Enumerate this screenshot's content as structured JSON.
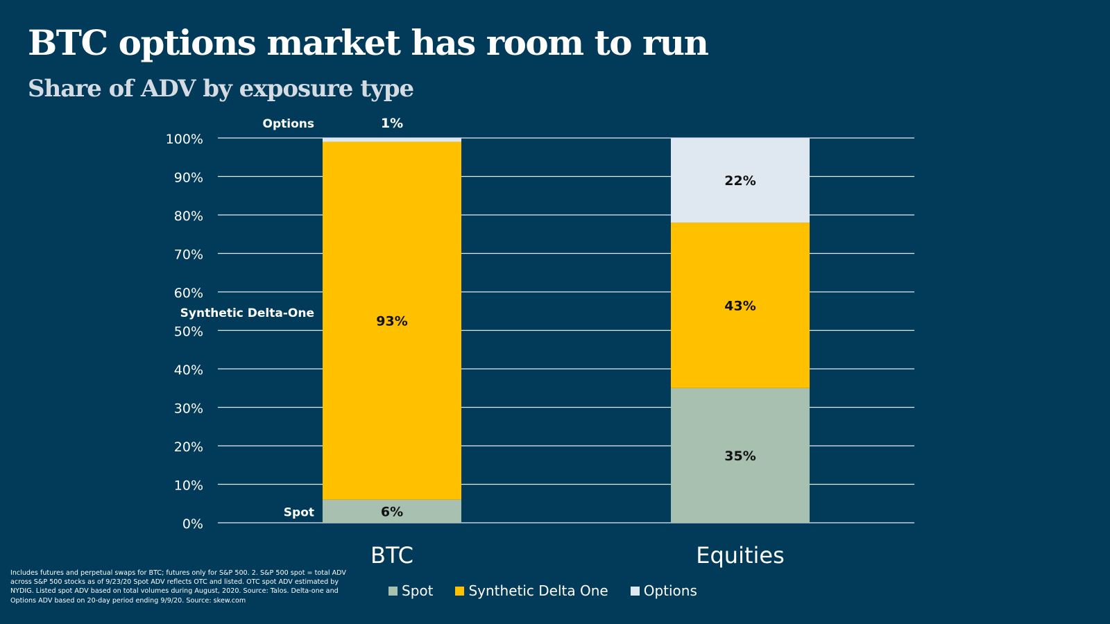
{
  "header": {
    "title": "BTC options market has room to run",
    "subtitle": "Share of ADV by exposure type"
  },
  "chart_data": {
    "type": "bar",
    "stacked": true,
    "title": "BTC options market has room to run",
    "subtitle": "Share of ADV by exposure type",
    "xlabel": "",
    "ylabel": "",
    "ylim": [
      0,
      100
    ],
    "yticks": [
      "0%",
      "10%",
      "20%",
      "30%",
      "40%",
      "50%",
      "60%",
      "70%",
      "80%",
      "90%",
      "100%"
    ],
    "grid": true,
    "categories": [
      "BTC",
      "Equities"
    ],
    "series": [
      {
        "name": "Spot",
        "color": "#a7c0b0",
        "values": [
          6,
          35
        ],
        "labels": [
          "6%",
          "35%"
        ]
      },
      {
        "name": "Synthetic Delta One",
        "color": "#ffc000",
        "values": [
          93,
          43
        ],
        "labels": [
          "93%",
          "43%"
        ]
      },
      {
        "name": "Options",
        "color": "#dfe7f1",
        "values": [
          1,
          22
        ],
        "labels": [
          "1%",
          "22%"
        ]
      }
    ],
    "annotations": {
      "btc_side_labels": [
        "Spot",
        "Synthetic Delta-One",
        "Options"
      ]
    },
    "legend": {
      "position": "bottom",
      "entries": [
        "Spot",
        "Synthetic Delta One",
        "Options"
      ]
    }
  },
  "footnote": "Includes futures and perpetual swaps for BTC; futures only for S&P 500. 2. S&P 500 spot = total ADV across S&P 500 stocks as of 9/23/20  Spot ADV reflects OTC and listed. OTC spot ADV estimated by NYDIG. Listed spot ADV based on total volumes during August, 2020. Source: Talos. Delta-one and Options ADV based on 20-day period ending 9/9/20. Source: skew.com",
  "colors": {
    "background": "#023a5a",
    "gridline": "#e6eef5",
    "label_on_bar": "#111111"
  }
}
